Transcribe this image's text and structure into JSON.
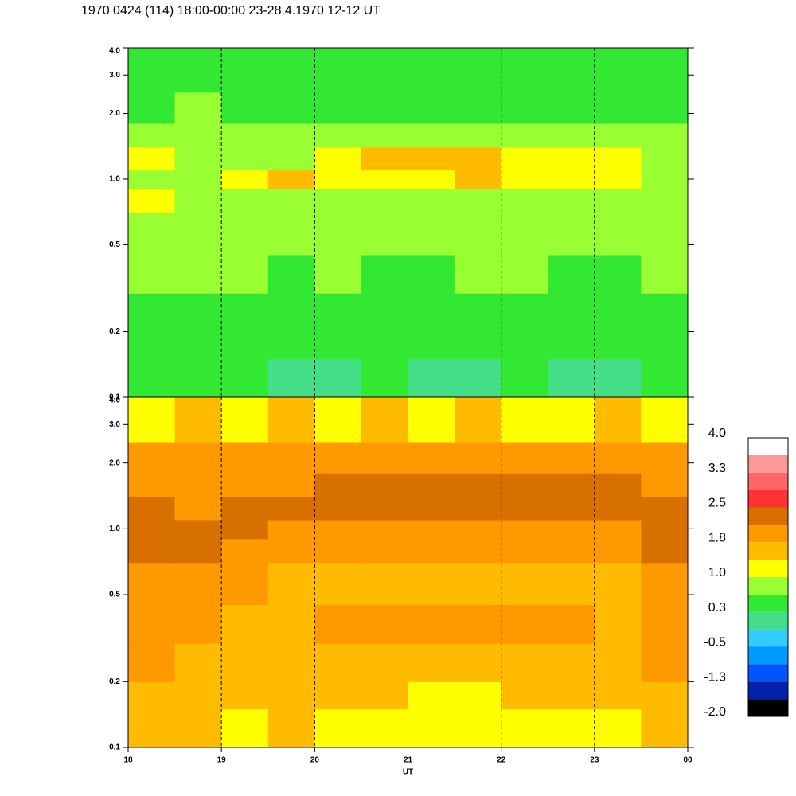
{
  "chart_data": [
    {
      "type": "heatmap",
      "title": "1970 0424 (114) 18:00-00:00 23-28.4.1970  12-12 UT",
      "xlim": [
        18,
        24
      ],
      "xticks": [
        19,
        20,
        21,
        22,
        23
      ],
      "ylim": [
        0.1,
        4
      ],
      "yscale": "log",
      "yticks": [
        0.1,
        0.2,
        0.5,
        {
          "value": 1,
          "label": "1.0"
        },
        {
          "value": 2,
          "label": "2.0"
        },
        {
          "value": 3,
          "label": "3.0"
        },
        {
          "value": 4,
          "label": "4.0"
        }
      ],
      "grid": true,
      "xbins": [
        18,
        18.5,
        19,
        19.5,
        20,
        20.5,
        21,
        21.5,
        22,
        22.5,
        23,
        23.5,
        24
      ],
      "ybins": [
        0.1,
        0.15,
        0.2,
        0.3,
        0.45,
        0.7,
        0.9,
        1.1,
        1.4,
        1.8,
        2.5,
        4
      ],
      "z": [
        [
          0.4,
          0.3,
          0.4,
          0.2,
          0.2,
          0.3,
          0.2,
          0.2,
          0.3,
          0.2,
          0.2,
          0.4
        ],
        [
          0.4,
          0.4,
          0.3,
          0.3,
          0.3,
          0.3,
          0.3,
          0.3,
          0.3,
          0.3,
          0.3,
          0.4
        ],
        [
          0.5,
          0.5,
          0.4,
          0.4,
          0.4,
          0.4,
          0.4,
          0.4,
          0.4,
          0.4,
          0.4,
          0.5
        ],
        [
          0.7,
          0.7,
          0.7,
          0.6,
          0.7,
          0.6,
          0.6,
          0.7,
          0.7,
          0.6,
          0.6,
          0.7
        ],
        [
          0.9,
          0.8,
          0.7,
          0.7,
          0.7,
          0.7,
          0.7,
          0.7,
          0.7,
          0.7,
          0.7,
          0.8
        ],
        [
          1.0,
          0.9,
          0.8,
          0.8,
          0.8,
          0.8,
          0.8,
          0.8,
          0.8,
          0.8,
          0.8,
          0.9
        ],
        [
          0.9,
          0.9,
          1.2,
          1.4,
          1.2,
          1.3,
          1.3,
          1.5,
          1.3,
          1.3,
          1.2,
          0.9
        ],
        [
          1.1,
          0.9,
          0.9,
          0.9,
          1.2,
          1.4,
          1.4,
          1.4,
          1.2,
          1.2,
          1.3,
          0.9
        ],
        [
          0.7,
          0.8,
          0.7,
          0.7,
          0.7,
          0.7,
          0.7,
          0.7,
          0.7,
          0.7,
          0.7,
          0.7
        ],
        [
          0.6,
          0.7,
          0.6,
          0.6,
          0.6,
          0.5,
          0.6,
          0.6,
          0.6,
          0.6,
          0.6,
          0.6
        ],
        [
          0.4,
          0.3,
          0.4,
          0.4,
          0.3,
          0.4,
          0.3,
          0.4,
          0.3,
          0.4,
          0.4,
          0.3
        ]
      ]
    },
    {
      "type": "heatmap",
      "xlabel": "UT",
      "xlim": [
        18,
        24
      ],
      "xticks": [
        18,
        19,
        20,
        21,
        22,
        23,
        {
          "value": 24,
          "label": "00"
        }
      ],
      "ylim": [
        0.1,
        4
      ],
      "yscale": "log",
      "yticks": [
        0.1,
        0.2,
        0.5,
        {
          "value": 1,
          "label": "1.0"
        },
        {
          "value": 2,
          "label": "2.0"
        },
        {
          "value": 3,
          "label": "3.0"
        },
        {
          "value": 4,
          "label": "4.0"
        }
      ],
      "grid": true,
      "xbins": [
        18,
        18.5,
        19,
        19.5,
        20,
        20.5,
        21,
        21.5,
        22,
        22.5,
        23,
        23.5,
        24
      ],
      "ybins": [
        0.1,
        0.15,
        0.2,
        0.3,
        0.45,
        0.7,
        0.9,
        1.1,
        1.4,
        1.8,
        2.5,
        4
      ],
      "z": [
        [
          1.5,
          1.6,
          1.3,
          1.4,
          1.3,
          1.2,
          1.1,
          1.1,
          1.2,
          1.3,
          1.3,
          1.5
        ],
        [
          1.7,
          1.6,
          1.5,
          1.5,
          1.4,
          1.4,
          1.3,
          1.3,
          1.4,
          1.5,
          1.5,
          1.7
        ],
        [
          1.8,
          1.7,
          1.6,
          1.6,
          1.6,
          1.5,
          1.5,
          1.6,
          1.6,
          1.7,
          1.6,
          1.8
        ],
        [
          2.0,
          1.8,
          1.7,
          1.7,
          1.8,
          1.8,
          1.8,
          1.8,
          1.9,
          1.8,
          1.7,
          1.9
        ],
        [
          2.1,
          2.0,
          1.8,
          1.7,
          1.7,
          1.7,
          1.7,
          1.7,
          1.7,
          1.7,
          1.7,
          1.9
        ],
        [
          2.3,
          2.2,
          1.9,
          1.8,
          1.8,
          1.8,
          1.8,
          1.8,
          1.8,
          1.8,
          1.8,
          2.2
        ],
        [
          2.2,
          2.3,
          2.2,
          2.0,
          1.9,
          1.9,
          1.9,
          1.9,
          1.9,
          1.9,
          1.9,
          2.3
        ],
        [
          2.3,
          2.1,
          2.3,
          2.3,
          2.3,
          2.2,
          2.2,
          2.2,
          2.2,
          2.2,
          2.2,
          2.3
        ],
        [
          1.9,
          1.8,
          1.9,
          2.0,
          2.2,
          2.3,
          2.3,
          2.3,
          2.3,
          2.3,
          2.2,
          1.9
        ],
        [
          1.8,
          1.8,
          1.8,
          1.8,
          1.8,
          1.8,
          1.8,
          1.8,
          1.8,
          1.8,
          1.8,
          1.8
        ],
        [
          1.3,
          1.4,
          1.3,
          1.4,
          1.3,
          1.4,
          1.3,
          1.4,
          1.3,
          1.3,
          1.4,
          1.3
        ]
      ],
      "colorbar": {
        "zlim": [
          -2,
          4
        ],
        "colors": [
          "#000000",
          "#0022aa",
          "#0055ff",
          "#0099ff",
          "#33ccff",
          "#44dd88",
          "#33e833",
          "#99ff33",
          "#ffff00",
          "#ffbb00",
          "#ff9900",
          "#d87000",
          "#ff3333",
          "#ff6666",
          "#ff9999",
          "#ffffff"
        ],
        "ticks": [
          {
            "value": 4,
            "label": "4.0"
          },
          {
            "value": 3.25,
            "label": "3.3"
          },
          {
            "value": 2.5,
            "label": "2.5"
          },
          {
            "value": 1.75,
            "label": "1.8"
          },
          {
            "value": 1,
            "label": "1.0"
          },
          {
            "value": 0.25,
            "label": "0.3"
          },
          {
            "value": -0.5,
            "label": "-0.5"
          },
          {
            "value": -1.25,
            "label": "-1.3"
          },
          {
            "value": -2,
            "label": "-2.0"
          }
        ]
      }
    }
  ]
}
